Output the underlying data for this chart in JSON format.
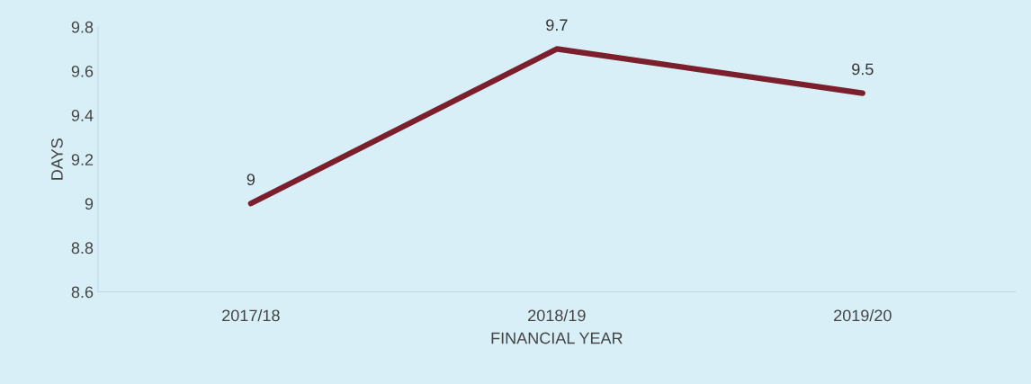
{
  "chart_data": {
    "type": "line",
    "xlabel": "FINANCIAL YEAR",
    "ylabel": "DAYS",
    "categories": [
      "2017/18",
      "2018/19",
      "2019/20"
    ],
    "series": [
      {
        "color": "#7a1f2b",
        "values": [
          9,
          9.7,
          9.5
        ]
      }
    ],
    "ylim": [
      8.6,
      9.8
    ],
    "yticks": [
      8.6,
      8.8,
      9,
      9.2,
      9.4,
      9.6,
      9.8
    ],
    "data_labels": true,
    "grid": false,
    "legend": false,
    "marker": "none",
    "line_style": "solid"
  }
}
